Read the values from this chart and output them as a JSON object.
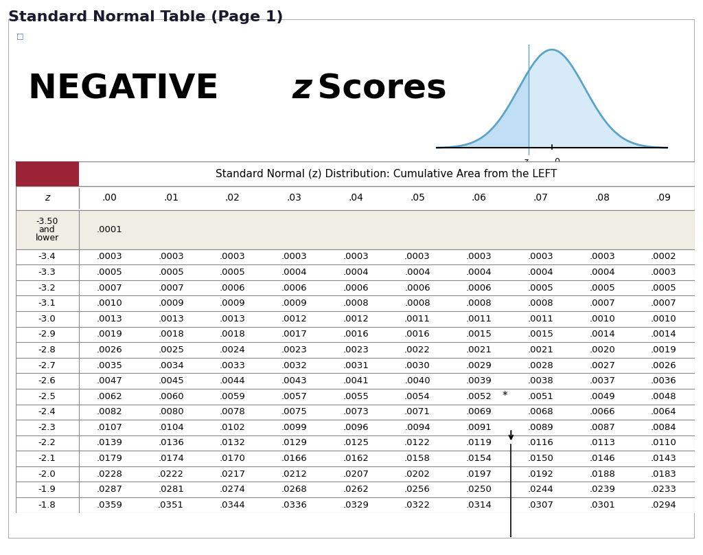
{
  "title": "Standard Normal Table (Page 1)",
  "table_header": "Standard Normal (z) Distribution: Cumulative Area from the LEFT",
  "col_headers": [
    "z",
    ".00",
    ".01",
    ".02",
    ".03",
    ".04",
    ".05",
    ".06",
    ".07",
    ".08",
    ".09"
  ],
  "rows": [
    [
      "-3.50\nand\nlower",
      ".0001",
      "",
      "",
      "",
      "",
      "",
      "",
      "",
      "",
      ""
    ],
    [
      "-3.4",
      ".0003",
      ".0003",
      ".0003",
      ".0003",
      ".0003",
      ".0003",
      ".0003",
      ".0003",
      ".0003",
      ".0002"
    ],
    [
      "-3.3",
      ".0005",
      ".0005",
      ".0005",
      ".0004",
      ".0004",
      ".0004",
      ".0004",
      ".0004",
      ".0004",
      ".0003"
    ],
    [
      "-3.2",
      ".0007",
      ".0007",
      ".0006",
      ".0006",
      ".0006",
      ".0006",
      ".0006",
      ".0005",
      ".0005",
      ".0005"
    ],
    [
      "-3.1",
      ".0010",
      ".0009",
      ".0009",
      ".0009",
      ".0008",
      ".0008",
      ".0008",
      ".0008",
      ".0007",
      ".0007"
    ],
    [
      "-3.0",
      ".0013",
      ".0013",
      ".0013",
      ".0012",
      ".0012",
      ".0011",
      ".0011",
      ".0011",
      ".0010",
      ".0010"
    ],
    [
      "-2.9",
      ".0019",
      ".0018",
      ".0018",
      ".0017",
      ".0016",
      ".0016",
      ".0015",
      ".0015",
      ".0014",
      ".0014"
    ],
    [
      "-2.8",
      ".0026",
      ".0025",
      ".0024",
      ".0023",
      ".0023",
      ".0022",
      ".0021",
      ".0021",
      ".0020",
      ".0019"
    ],
    [
      "-2.7",
      ".0035",
      ".0034",
      ".0033",
      ".0032",
      ".0031",
      ".0030",
      ".0029",
      ".0028",
      ".0027",
      ".0026"
    ],
    [
      "-2.6",
      ".0047",
      ".0045",
      ".0044",
      ".0043",
      ".0041",
      ".0040",
      ".0039",
      ".0038",
      ".0037",
      ".0036"
    ],
    [
      "-2.5",
      ".0062",
      ".0060",
      ".0059",
      ".0057",
      ".0055",
      ".0054",
      ".0052",
      ".0051",
      ".0049",
      ".0048"
    ],
    [
      "-2.4",
      ".0082",
      ".0080",
      ".0078",
      ".0075",
      ".0073",
      ".0071",
      ".0069",
      ".0068",
      ".0066",
      ".0064"
    ],
    [
      "-2.3",
      ".0107",
      ".0104",
      ".0102",
      ".0099",
      ".0096",
      ".0094",
      ".0091",
      ".0089",
      ".0087",
      ".0084"
    ],
    [
      "-2.2",
      ".0139",
      ".0136",
      ".0132",
      ".0129",
      ".0125",
      ".0122",
      ".0119",
      ".0116",
      ".0113",
      ".0110"
    ],
    [
      "-2.1",
      ".0179",
      ".0174",
      ".0170",
      ".0166",
      ".0162",
      ".0158",
      ".0154",
      ".0150",
      ".0146",
      ".0143"
    ],
    [
      "-2.0",
      ".0228",
      ".0222",
      ".0217",
      ".0212",
      ".0207",
      ".0202",
      ".0197",
      ".0192",
      ".0188",
      ".0183"
    ],
    [
      "-1.9",
      ".0287",
      ".0281",
      ".0274",
      ".0268",
      ".0262",
      ".0256",
      ".0250",
      ".0244",
      ".0239",
      ".0233"
    ],
    [
      "-1.8",
      ".0359",
      ".0351",
      ".0344",
      ".0336",
      ".0329",
      ".0322",
      ".0314",
      ".0307",
      ".0301",
      ".0294"
    ]
  ],
  "bg_color": "#ffffff",
  "table_bg": "#f0ede4",
  "header_bg": "#9b2335",
  "border_color": "#888888",
  "curve_color": "#5ba3c9",
  "curve_fill": "#aed6f1",
  "star_row": "-2.5",
  "arrow_row": "-2.4",
  "star_col": 7,
  "arrow_col": 8
}
